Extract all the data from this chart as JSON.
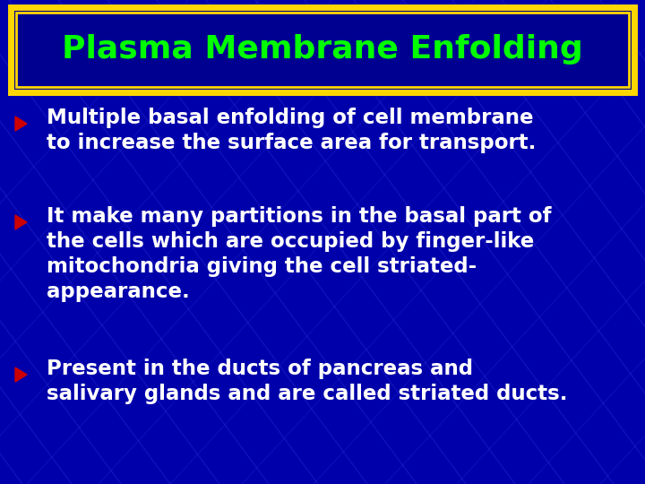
{
  "background_color": "#0000AA",
  "title": "Plasma Membrane Enfolding",
  "title_color": "#00FF00",
  "title_bg_color": "#000090",
  "title_border_outer": "#FFD700",
  "title_border_inner": "#FFD700",
  "bullet_color": "#CC0000",
  "text_color": "#FFFFFF",
  "bullets": [
    "Multiple basal enfolding of cell membrane\nto increase the surface area for transport.",
    "It make many partitions in the basal part of\nthe cells which are occupied by finger-like\nmitochondria giving the cell striated-\nappearance.",
    "Present in the ducts of pancreas and\nsalivary glands and are called striated ducts."
  ],
  "title_fontsize": 26,
  "bullet_fontsize": 16.5,
  "fig_width": 7.2,
  "fig_height": 5.4,
  "dpi": 100
}
